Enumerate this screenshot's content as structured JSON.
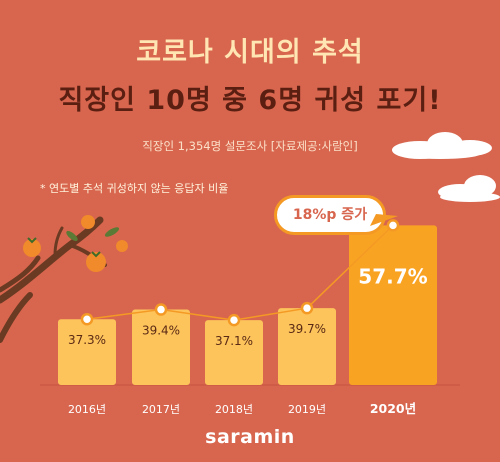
{
  "header": {
    "title_line1": "코로나 시대의 추석",
    "title_line2": "직장인 10명 중 6명 귀성 포기!",
    "subtitle": "직장인 1,354명 설문조사 [자료제공:사람인]"
  },
  "note": "* 연도별 추석 귀성하지 않는 응답자 비율",
  "callout": "18%p 증가",
  "brand": "saramin",
  "colors": {
    "background": "#d8664f",
    "bar": "#fdc45c",
    "bar_highlight": "#f9a323",
    "line": "#f49a24",
    "title1": "#ffe6b3",
    "title2": "#5b1f12"
  },
  "chart_data": {
    "type": "bar",
    "categories": [
      "2016년",
      "2017년",
      "2018년",
      "2019년",
      "2020년"
    ],
    "values": [
      37.3,
      39.4,
      37.1,
      39.7,
      57.7
    ],
    "value_labels": [
      "37.3%",
      "39.4%",
      "37.1%",
      "39.7%",
      "57.7%"
    ],
    "highlight_index": 4,
    "title": "코로나 시대의 추석",
    "xlabel": "",
    "ylabel": "",
    "grid": false,
    "legend": "none"
  }
}
